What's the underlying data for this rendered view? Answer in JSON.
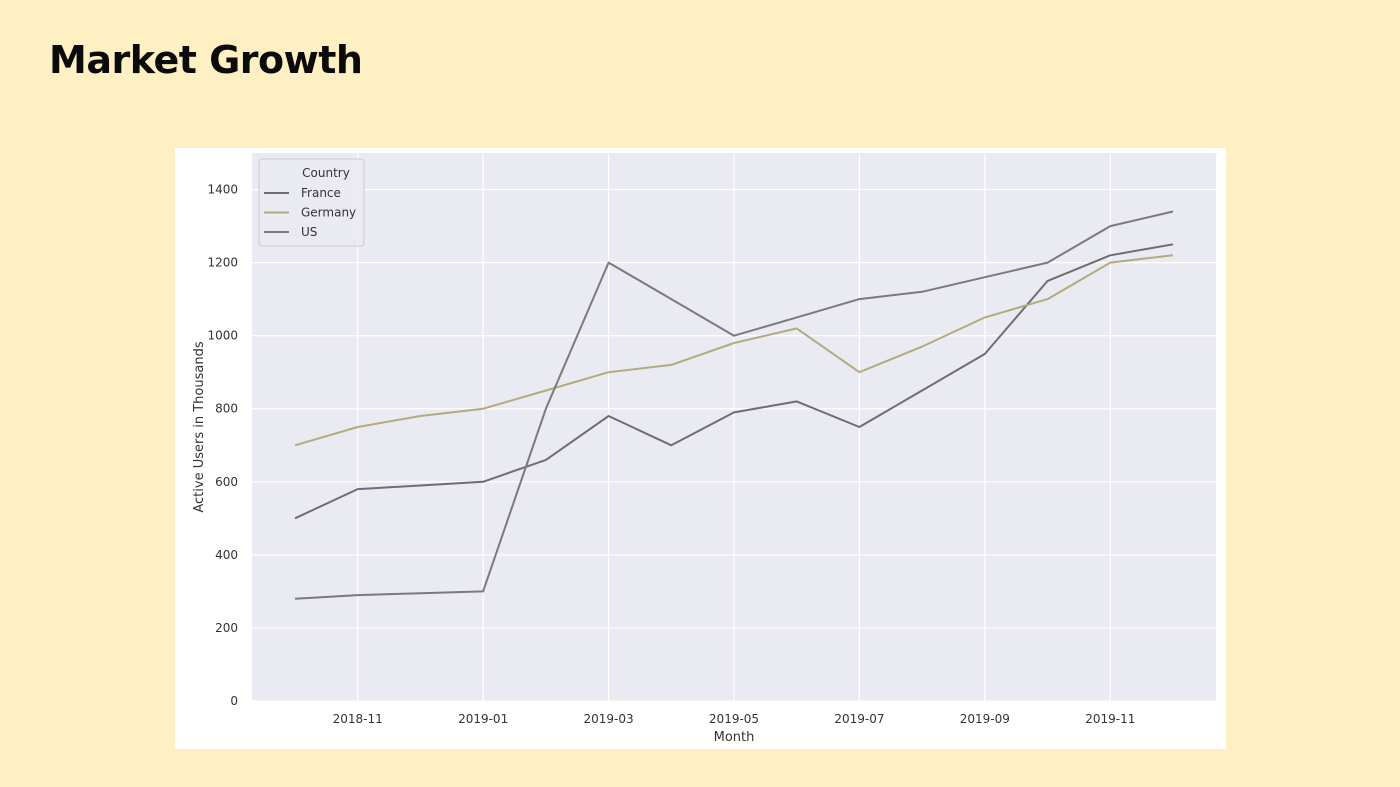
{
  "slide": {
    "title": "Market Growth"
  },
  "colors": {
    "background": "#fff0c4",
    "plot_bg": "#eaeaf2",
    "grid": "#ffffff",
    "France": "#6e6e6e",
    "Germany": "#b3ab7c",
    "US": "#7a7a7a"
  },
  "chart_data": {
    "type": "line",
    "title": "",
    "xlabel": "Month",
    "ylabel": "Active Users in Thousands",
    "x": [
      "2018-10",
      "2018-11",
      "2018-12",
      "2019-01",
      "2019-02",
      "2019-03",
      "2019-04",
      "2019-05",
      "2019-06",
      "2019-07",
      "2019-08",
      "2019-09",
      "2019-10",
      "2019-11",
      "2019-12"
    ],
    "x_tick_labels": [
      "2018-11",
      "2019-01",
      "2019-03",
      "2019-05",
      "2019-07",
      "2019-09",
      "2019-11"
    ],
    "y_ticks": [
      0,
      200,
      400,
      600,
      800,
      1000,
      1200,
      1400
    ],
    "ylim": [
      0,
      1500
    ],
    "grid": true,
    "legend": {
      "title": "Country",
      "placement": "top-left"
    },
    "series": [
      {
        "name": "France",
        "values": [
          500,
          580,
          590,
          600,
          660,
          780,
          700,
          790,
          820,
          750,
          850,
          950,
          1150,
          1220,
          1250
        ]
      },
      {
        "name": "Germany",
        "values": [
          700,
          750,
          780,
          800,
          850,
          900,
          920,
          980,
          1020,
          900,
          970,
          1050,
          1100,
          1200,
          1220
        ]
      },
      {
        "name": "US",
        "values": [
          280,
          290,
          295,
          300,
          800,
          1200,
          1100,
          1000,
          1050,
          1100,
          1120,
          1160,
          1200,
          1300,
          1340
        ]
      }
    ]
  }
}
